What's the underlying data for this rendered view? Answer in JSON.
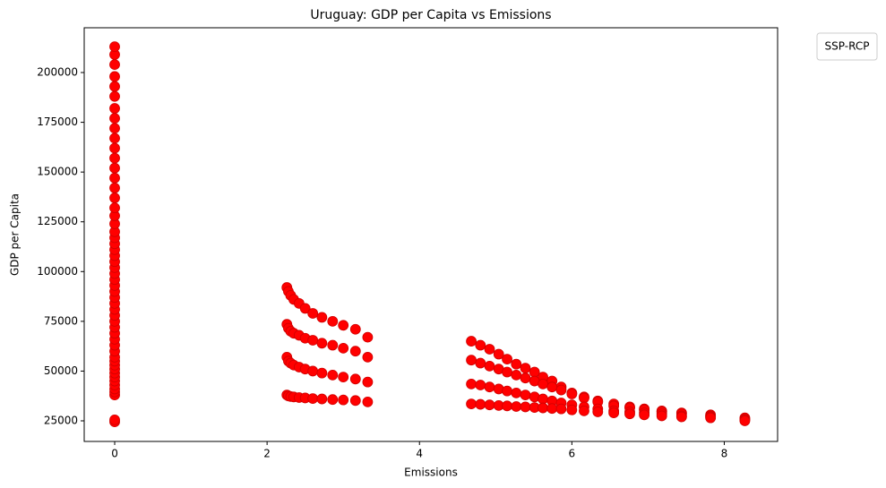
{
  "chart_data": {
    "type": "scatter",
    "title": "Uruguay: GDP per Capita vs Emissions",
    "x_label": "Emissions",
    "y_label": "GDP per Capita",
    "legend_title": "SSP-RCP",
    "color": "#ff0000",
    "xlim": [
      -0.4,
      8.7
    ],
    "xticks": [
      0,
      2,
      4,
      6,
      8
    ],
    "ylim": [
      14650,
      222500
    ],
    "yticks": [
      25000,
      50000,
      75000,
      100000,
      125000,
      150000,
      175000,
      200000
    ],
    "x": [
      0,
      0,
      0,
      0,
      0,
      0,
      0,
      0,
      0,
      0,
      0,
      0,
      0,
      0,
      0,
      0,
      0,
      0,
      0,
      0,
      0,
      0,
      0,
      0,
      0,
      0,
      0,
      0,
      0,
      0,
      0,
      0,
      0,
      0,
      0,
      0,
      0,
      0,
      0,
      0,
      0,
      0,
      0,
      0,
      0,
      0,
      0,
      0,
      0,
      0,
      0,
      0,
      0,
      2.26,
      2.28,
      2.31,
      2.35,
      2.42,
      2.5,
      2.6,
      2.72,
      2.86,
      3.0,
      3.16,
      3.32,
      2.26,
      2.28,
      2.31,
      2.35,
      2.42,
      2.5,
      2.6,
      2.72,
      2.86,
      3.0,
      3.16,
      3.32,
      2.26,
      2.28,
      2.31,
      2.35,
      2.42,
      2.5,
      2.6,
      2.72,
      2.86,
      3.0,
      3.16,
      3.32,
      2.26,
      2.28,
      2.31,
      2.35,
      2.42,
      2.5,
      2.6,
      2.72,
      2.86,
      3.0,
      3.16,
      3.32,
      4.68,
      4.8,
      4.92,
      5.04,
      5.15,
      5.27,
      5.39,
      5.51,
      5.62,
      5.74,
      5.86,
      6.0,
      6.16,
      6.34,
      6.55,
      6.76,
      6.95,
      7.18,
      7.44,
      7.82,
      8.27,
      4.68,
      4.8,
      4.92,
      5.04,
      5.15,
      5.27,
      5.39,
      5.51,
      5.62,
      5.74,
      5.86,
      6.0,
      6.16,
      6.34,
      6.55,
      6.76,
      6.95,
      7.18,
      7.44,
      7.82,
      8.27,
      4.68,
      4.8,
      4.92,
      5.04,
      5.15,
      5.27,
      5.39,
      5.51,
      5.62,
      5.74,
      5.86,
      6.0,
      6.16,
      6.34,
      6.55,
      6.76,
      6.95,
      7.18,
      7.44,
      7.82,
      8.27,
      4.68,
      4.8,
      4.92,
      5.04,
      5.15,
      5.27,
      5.39,
      5.51,
      5.62,
      5.74,
      5.86,
      6.0,
      6.16,
      6.34,
      6.55,
      6.76,
      6.95,
      7.18,
      7.44,
      7.82,
      8.27
    ],
    "values": [
      24500,
      25500,
      38000,
      39500,
      41000,
      43000,
      45000,
      47000,
      49000,
      51000,
      53000,
      55000,
      57000,
      60000,
      63000,
      66000,
      69000,
      72000,
      75000,
      78000,
      81000,
      84000,
      87000,
      90000,
      93000,
      96000,
      99000,
      102000,
      105000,
      108000,
      111000,
      114000,
      117000,
      120000,
      124000,
      128000,
      132000,
      137000,
      142000,
      147000,
      152000,
      157000,
      162000,
      167000,
      172000,
      177000,
      182000,
      188000,
      193000,
      198000,
      204000,
      209000,
      213000,
      92000,
      90000,
      88000,
      86000,
      84000,
      81500,
      79000,
      77000,
      75000,
      73000,
      71000,
      67000,
      73500,
      71500,
      70000,
      69000,
      68000,
      66500,
      65500,
      64000,
      63000,
      61500,
      60000,
      57000,
      57000,
      55000,
      54000,
      53000,
      52000,
      51000,
      50000,
      49000,
      48000,
      47000,
      46000,
      44500,
      38000,
      37500,
      37200,
      37000,
      36700,
      36500,
      36200,
      36000,
      35700,
      35500,
      35200,
      34500,
      65000,
      63000,
      61000,
      58500,
      56000,
      53500,
      51500,
      49500,
      47000,
      45000,
      42000,
      39000,
      37000,
      35000,
      33500,
      32000,
      31000,
      30000,
      29000,
      28000,
      26500,
      55500,
      54000,
      52500,
      51000,
      49500,
      48000,
      46500,
      45000,
      43500,
      42000,
      40500,
      38500,
      36500,
      34500,
      32500,
      31500,
      30500,
      29500,
      28500,
      27500,
      26000,
      43500,
      43000,
      42000,
      41000,
      40000,
      39000,
      38000,
      37000,
      36000,
      35000,
      34000,
      33000,
      32000,
      31000,
      30000,
      29500,
      29000,
      28500,
      27500,
      27000,
      25500,
      33500,
      33300,
      33000,
      32700,
      32500,
      32200,
      32000,
      31700,
      31500,
      31200,
      31000,
      30500,
      30000,
      29500,
      29000,
      28500,
      28000,
      27500,
      27000,
      26500,
      25000
    ]
  }
}
